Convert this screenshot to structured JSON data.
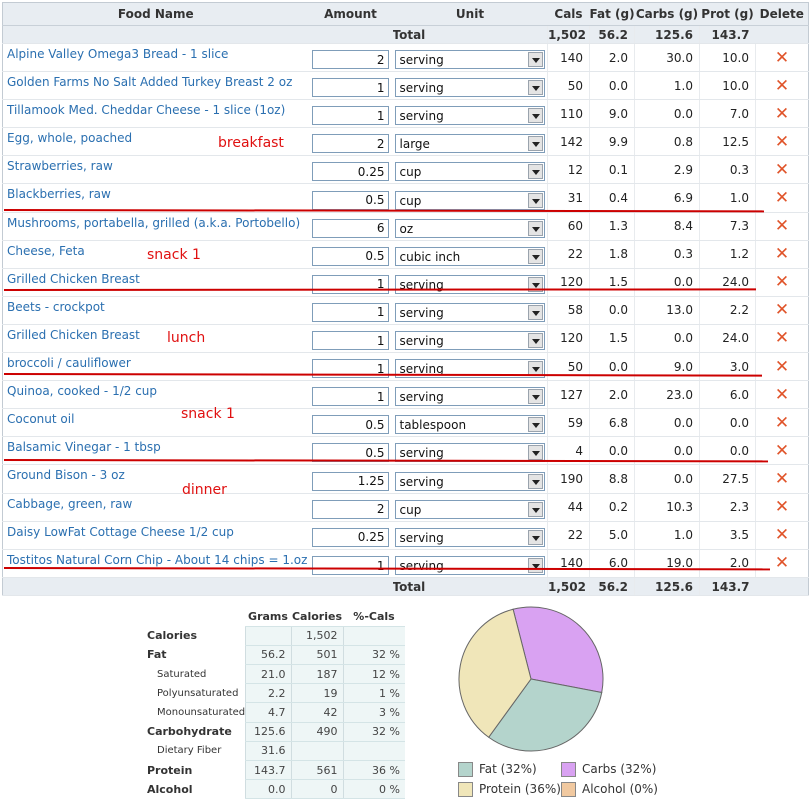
{
  "headers": {
    "food_name": "Food Name",
    "amount": "Amount",
    "unit": "Unit",
    "cals": "Cals",
    "fat": "Fat (g)",
    "carbs": "Carbs (g)",
    "prot": "Prot (g)",
    "delete": "Delete"
  },
  "totals": {
    "label": "Total",
    "cals": "1,502",
    "fat": "56.2",
    "carbs": "125.6",
    "prot": "143.7"
  },
  "foods": [
    {
      "name": "Alpine Valley Omega3 Bread - 1 slice",
      "amount": "2",
      "unit": "serving",
      "cals": "140",
      "fat": "2.0",
      "carbs": "30.0",
      "prot": "10.0"
    },
    {
      "name": "Golden Farms No Salt Added Turkey Breast 2 oz",
      "amount": "1",
      "unit": "serving",
      "cals": "50",
      "fat": "0.0",
      "carbs": "1.0",
      "prot": "10.0"
    },
    {
      "name": "Tillamook Med. Cheddar Cheese - 1 slice (1oz)",
      "amount": "1",
      "unit": "serving",
      "cals": "110",
      "fat": "9.0",
      "carbs": "0.0",
      "prot": "7.0"
    },
    {
      "name": "Egg, whole, poached",
      "amount": "2",
      "unit": "large",
      "cals": "142",
      "fat": "9.9",
      "carbs": "0.8",
      "prot": "12.5"
    },
    {
      "name": "Strawberries, raw",
      "amount": "0.25",
      "unit": "cup",
      "cals": "12",
      "fat": "0.1",
      "carbs": "2.9",
      "prot": "0.3"
    },
    {
      "name": "Blackberries, raw",
      "amount": "0.5",
      "unit": "cup",
      "cals": "31",
      "fat": "0.4",
      "carbs": "6.9",
      "prot": "1.0"
    },
    {
      "name": "Mushrooms, portabella, grilled (a.k.a. Portobello)",
      "amount": "6",
      "unit": "oz",
      "cals": "60",
      "fat": "1.3",
      "carbs": "8.4",
      "prot": "7.3"
    },
    {
      "name": "Cheese, Feta",
      "amount": "0.5",
      "unit": "cubic inch",
      "cals": "22",
      "fat": "1.8",
      "carbs": "0.3",
      "prot": "1.2"
    },
    {
      "name": "Grilled Chicken Breast",
      "amount": "1",
      "unit": "serving",
      "cals": "120",
      "fat": "1.5",
      "carbs": "0.0",
      "prot": "24.0"
    },
    {
      "name": "Beets - crockpot",
      "amount": "1",
      "unit": "serving",
      "cals": "58",
      "fat": "0.0",
      "carbs": "13.0",
      "prot": "2.2"
    },
    {
      "name": "Grilled Chicken Breast",
      "amount": "1",
      "unit": "serving",
      "cals": "120",
      "fat": "1.5",
      "carbs": "0.0",
      "prot": "24.0"
    },
    {
      "name": "broccoli / cauliflower",
      "amount": "1",
      "unit": "serving",
      "cals": "50",
      "fat": "0.0",
      "carbs": "9.0",
      "prot": "3.0"
    },
    {
      "name": "Quinoa, cooked - 1/2 cup",
      "amount": "1",
      "unit": "serving",
      "cals": "127",
      "fat": "2.0",
      "carbs": "23.0",
      "prot": "6.0"
    },
    {
      "name": "Coconut oil",
      "amount": "0.5",
      "unit": "tablespoon",
      "cals": "59",
      "fat": "6.8",
      "carbs": "0.0",
      "prot": "0.0"
    },
    {
      "name": "Balsamic Vinegar - 1 tbsp",
      "amount": "0.5",
      "unit": "serving",
      "cals": "4",
      "fat": "0.0",
      "carbs": "0.0",
      "prot": "0.0"
    },
    {
      "name": "Ground Bison - 3 oz",
      "amount": "1.25",
      "unit": "serving",
      "cals": "190",
      "fat": "8.8",
      "carbs": "0.0",
      "prot": "27.5"
    },
    {
      "name": "Cabbage, green, raw",
      "amount": "2",
      "unit": "cup",
      "cals": "44",
      "fat": "0.2",
      "carbs": "10.3",
      "prot": "2.3"
    },
    {
      "name": "Daisy LowFat Cottage Cheese 1/2 cup",
      "amount": "0.25",
      "unit": "serving",
      "cals": "22",
      "fat": "5.0",
      "carbs": "1.0",
      "prot": "3.5"
    },
    {
      "name": "Tostitos Natural Corn Chip - About 14 chips = 1.oz",
      "amount": "1",
      "unit": "serving",
      "cals": "140",
      "fat": "6.0",
      "carbs": "19.0",
      "prot": "2.0"
    }
  ],
  "annotations": {
    "breakfast": "breakfast",
    "snack_a": "snack 1",
    "lunch": "lunch",
    "snack_b": "snack 1",
    "dinner": "dinner"
  },
  "nutrients": {
    "head_grams": "Grams",
    "head_calories": "Calories",
    "head_pct": "%-Cals",
    "calories_label": "Calories",
    "calories_value": "1,502",
    "fat_label": "Fat",
    "fat_grams": "56.2",
    "fat_cals": "501",
    "fat_pct": "32 %",
    "saturated_label": "Saturated",
    "saturated_grams": "21.0",
    "saturated_cals": "187",
    "saturated_pct": "12 %",
    "poly_label": "Polyunsaturated",
    "poly_grams": "2.2",
    "poly_cals": "19",
    "poly_pct": "1 %",
    "mono_label": "Monounsaturated",
    "mono_grams": "4.7",
    "mono_cals": "42",
    "mono_pct": "3 %",
    "carb_label": "Carbohydrate",
    "carb_grams": "125.6",
    "carb_cals": "490",
    "carb_pct": "32 %",
    "fiber_label": "Dietary Fiber",
    "fiber_grams": "31.6",
    "protein_label": "Protein",
    "protein_grams": "143.7",
    "protein_cals": "561",
    "protein_pct": "36 %",
    "alcohol_label": "Alcohol",
    "alcohol_grams": "0.0",
    "alcohol_cals": "0",
    "alcohol_pct": "0 %"
  },
  "chart_data": {
    "type": "pie",
    "categories": [
      "Fat",
      "Carbs",
      "Protein",
      "Alcohol"
    ],
    "values": [
      32,
      32,
      36,
      0
    ],
    "colors": [
      "#b4d4cc",
      "#d9a2f2",
      "#f0e6b9",
      "#f1c9a0"
    ],
    "legend": [
      "Fat  (32%)",
      "Carbs  (32%)",
      "Protein  (36%)",
      "Alcohol  (0%)"
    ],
    "legend_position": "bottom"
  },
  "colors": {
    "link": "#2a6fb0",
    "annotation": "#e01010",
    "delete": "#e0542a"
  }
}
